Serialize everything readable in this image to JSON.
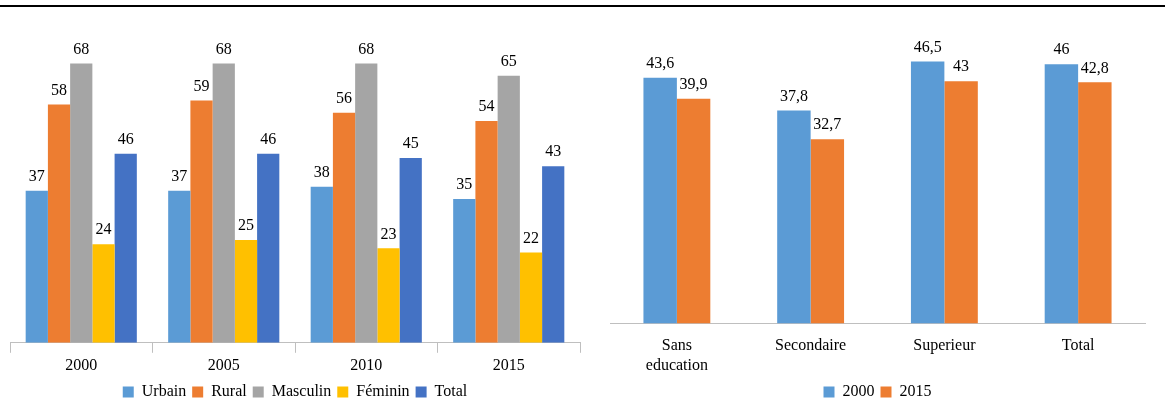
{
  "chart_data": [
    {
      "type": "bar",
      "categories": [
        "2000",
        "2005",
        "2010",
        "2015"
      ],
      "series": [
        {
          "name": "Urbain",
          "color": "#5b9bd5",
          "values": [
            37,
            37,
            38,
            35
          ]
        },
        {
          "name": "Rural",
          "color": "#ed7d31",
          "values": [
            58,
            59,
            56,
            54
          ]
        },
        {
          "name": "Masculin",
          "color": "#a5a5a5",
          "values": [
            68,
            68,
            68,
            65
          ]
        },
        {
          "name": "Féminin",
          "color": "#ffc000",
          "values": [
            24,
            25,
            23,
            22
          ]
        },
        {
          "name": "Total",
          "color": "#4472c4",
          "values": [
            46,
            46,
            45,
            43
          ]
        }
      ],
      "data_labels": true,
      "legend": "bottom",
      "grid": false
    },
    {
      "type": "bar",
      "categories": [
        "Sans education",
        "Secondaire",
        "Superieur",
        "Total"
      ],
      "series": [
        {
          "name": "2000",
          "color": "#5b9bd5",
          "values": [
            43.6,
            37.8,
            46.5,
            46
          ],
          "value_labels": [
            "43,6",
            "37,8",
            "46,5",
            "46"
          ]
        },
        {
          "name": "2015",
          "color": "#ed7d31",
          "values": [
            39.9,
            32.7,
            43,
            42.8
          ],
          "value_labels": [
            "39,9",
            "32,7",
            "43",
            "42,8"
          ]
        }
      ],
      "legend": "bottom",
      "grid": false
    }
  ]
}
